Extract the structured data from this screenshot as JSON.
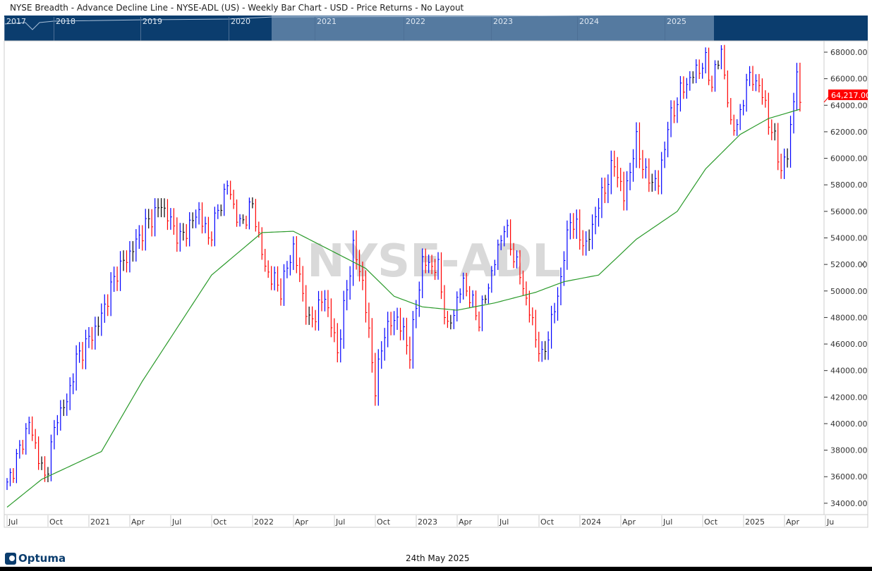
{
  "header": {
    "title": "NYSE Breadth - Advance Decline Line - NYSE-ADL (US) - Weekly Bar Chart - USD - Price Returns - No Layout"
  },
  "navigator": {
    "years": [
      "2017",
      "2018",
      "2019",
      "2020",
      "2021",
      "2022",
      "2023",
      "2024",
      "2025"
    ]
  },
  "footer": {
    "date": "24th May 2025",
    "logo": "Optuma"
  },
  "chart_data": {
    "type": "bar",
    "title": "NYSE-ADL",
    "watermark": "NYSE-ADL",
    "x_unit": "weeks since start of Jul 2020",
    "x_ticks": [
      "Jul",
      "Oct",
      "2021",
      "Apr",
      "Jul",
      "Oct",
      "2022",
      "Apr",
      "Jul",
      "Oct",
      "2023",
      "Apr",
      "Jul",
      "Oct",
      "2024",
      "Apr",
      "Jul",
      "Oct",
      "2025",
      "Apr",
      "Ju"
    ],
    "y_ticks": [
      34000,
      36000,
      38000,
      40000,
      42000,
      44000,
      46000,
      48000,
      50000,
      52000,
      54000,
      56000,
      58000,
      60000,
      62000,
      64000,
      66000,
      68000
    ],
    "ylim": [
      33500,
      68800
    ],
    "last_price": "64,217.00",
    "colors": {
      "up": "#0000ff",
      "down": "#ff0000",
      "neutral": "#000000",
      "ma": "#2a9a2a",
      "last_price_bg": "#ff0000"
    },
    "close_pivots": [
      [
        0,
        35300
      ],
      [
        7,
        40050
      ],
      [
        12,
        35800
      ],
      [
        16,
        40600
      ],
      [
        19,
        41600
      ],
      [
        22,
        44800
      ],
      [
        29,
        47500
      ],
      [
        35,
        51500
      ],
      [
        39,
        52800
      ],
      [
        44,
        54900
      ],
      [
        49,
        56500
      ],
      [
        55,
        53900
      ],
      [
        61,
        56000
      ],
      [
        64,
        53900
      ],
      [
        70,
        58000
      ],
      [
        74,
        54900
      ],
      [
        78,
        56500
      ],
      [
        82,
        51700
      ],
      [
        87,
        50100
      ],
      [
        91,
        53300
      ],
      [
        96,
        47500
      ],
      [
        101,
        49600
      ],
      [
        105,
        45400
      ],
      [
        110,
        53300
      ],
      [
        113,
        50700
      ],
      [
        117,
        42700
      ],
      [
        120,
        47000
      ],
      [
        124,
        48000
      ],
      [
        128,
        45400
      ],
      [
        132,
        52200
      ],
      [
        137,
        51700
      ],
      [
        140,
        47000
      ],
      [
        145,
        50700
      ],
      [
        150,
        47800
      ],
      [
        155,
        52200
      ],
      [
        158,
        54900
      ],
      [
        163,
        51200
      ],
      [
        167,
        47500
      ],
      [
        170,
        44800
      ],
      [
        175,
        49600
      ],
      [
        179,
        55500
      ],
      [
        184,
        53300
      ],
      [
        188,
        56500
      ],
      [
        193,
        59700
      ],
      [
        196,
        57000
      ],
      [
        200,
        61300
      ],
      [
        203,
        58600
      ],
      [
        207,
        58100
      ],
      [
        210,
        62400
      ],
      [
        214,
        65000
      ],
      [
        219,
        66600
      ],
      [
        222,
        67200
      ],
      [
        224,
        65600
      ],
      [
        227,
        68200
      ],
      [
        230,
        62400
      ],
      [
        233,
        62900
      ],
      [
        235,
        66100
      ],
      [
        239,
        65600
      ],
      [
        242,
        62900
      ],
      [
        244,
        61300
      ],
      [
        246,
        59200
      ],
      [
        248,
        60200
      ],
      [
        250,
        64500
      ],
      [
        251,
        66600
      ],
      [
        252,
        64217
      ]
    ],
    "ma_pivots": [
      [
        0,
        33700
      ],
      [
        11,
        35800
      ],
      [
        30,
        37900
      ],
      [
        43,
        43200
      ],
      [
        65,
        51200
      ],
      [
        81,
        54400
      ],
      [
        91,
        54500
      ],
      [
        105,
        52800
      ],
      [
        114,
        51700
      ],
      [
        123,
        49600
      ],
      [
        132,
        48800
      ],
      [
        143,
        48550
      ],
      [
        155,
        49100
      ],
      [
        168,
        49900
      ],
      [
        177,
        50700
      ],
      [
        188,
        51200
      ],
      [
        200,
        53900
      ],
      [
        213,
        56000
      ],
      [
        222,
        59200
      ],
      [
        233,
        61800
      ],
      [
        242,
        63000
      ],
      [
        252,
        63700
      ]
    ]
  }
}
